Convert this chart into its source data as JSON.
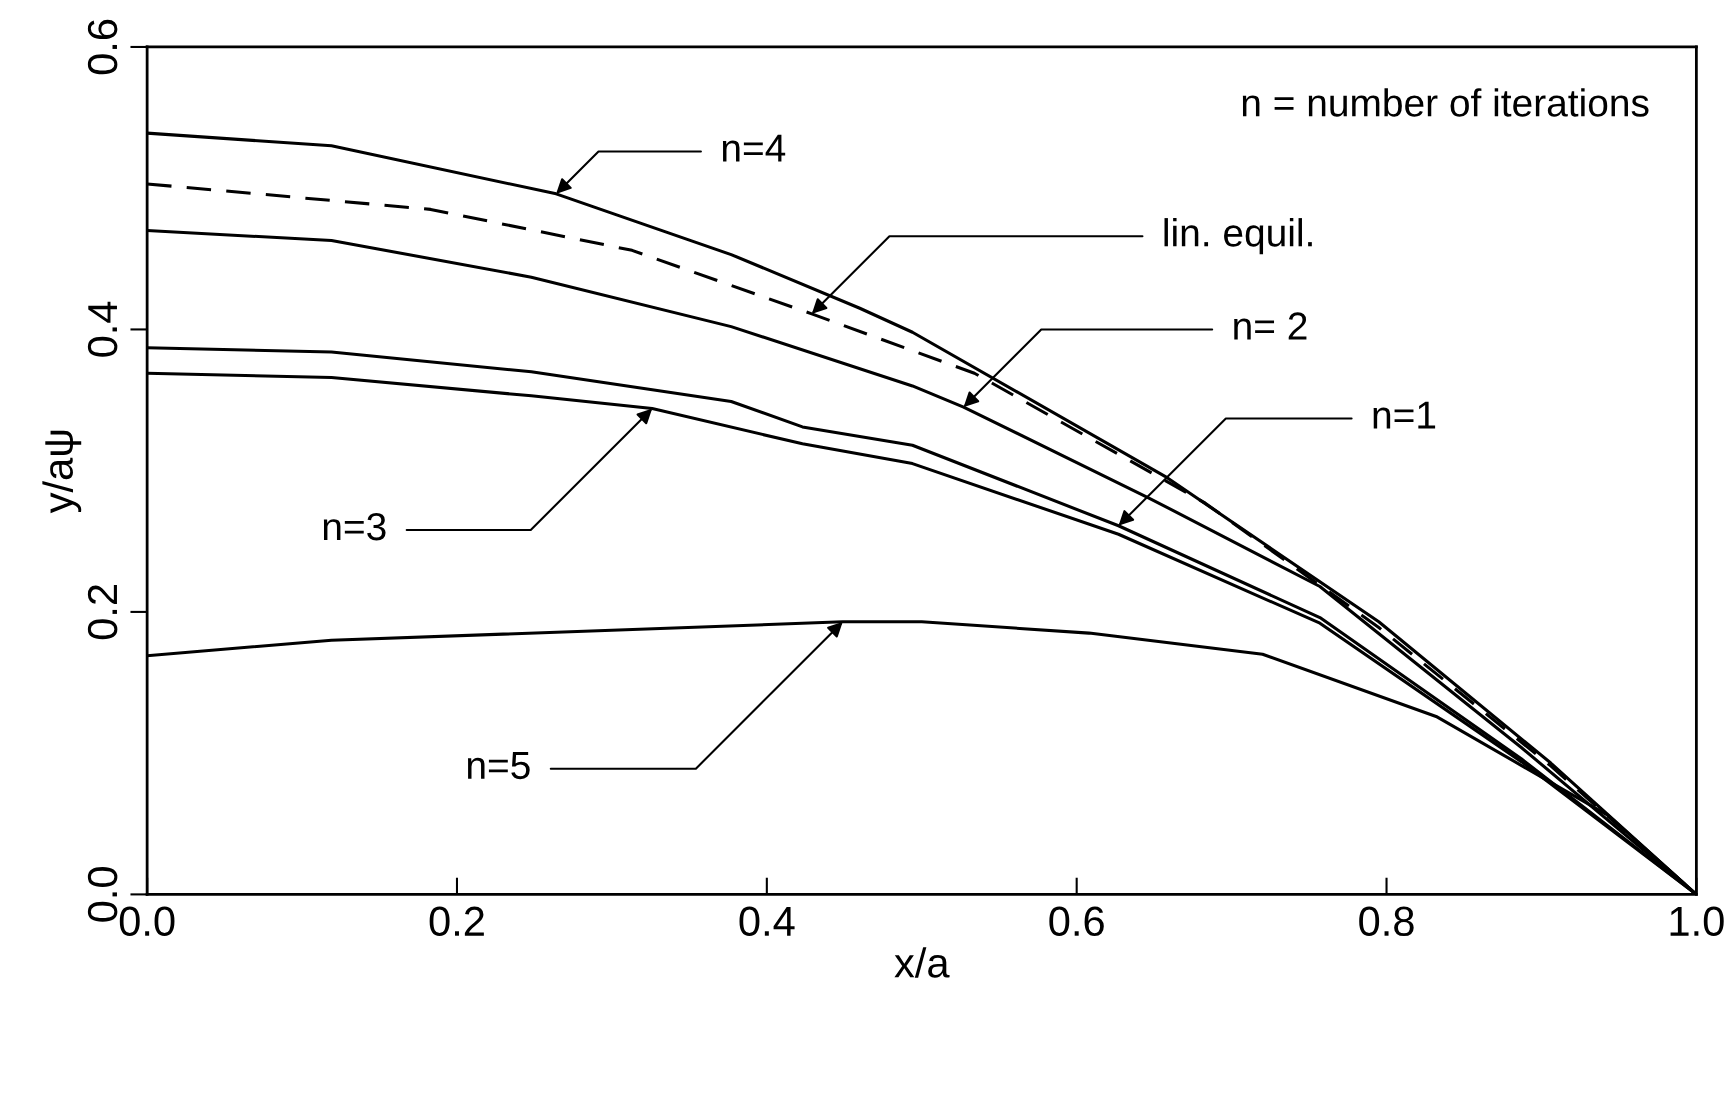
{
  "chart_data": {
    "type": "line",
    "xlabel": "x/a",
    "ylabel": "y/aψ",
    "xlim": [
      0.0,
      1.0
    ],
    "ylim": [
      0.0,
      0.6
    ],
    "xticks": [
      {
        "value": 0.0,
        "label": "0.0"
      },
      0.2,
      0.4,
      0.6,
      0.8,
      {
        "value": 1.0,
        "label": "1.0"
      }
    ],
    "yticks": [
      {
        "value": 0.0,
        "label": "0.0"
      },
      0.2,
      0.4,
      0.6
    ],
    "grid": false,
    "legend": false,
    "marker": "none",
    "series": [
      {
        "color": "#000000",
        "line_style": "solid",
        "x": [
          0.0,
          0.119,
          0.264,
          0.377,
          0.46,
          0.494,
          0.657,
          0.795,
          0.906,
          1.0
        ],
        "values": [
          0.539,
          0.53,
          0.496,
          0.453,
          0.415,
          0.398,
          0.296,
          0.193,
          0.093,
          0.0
        ]
      },
      {
        "color": "#000000",
        "line_style": "dashed",
        "x": [
          0.0,
          0.183,
          0.313,
          0.429,
          0.534,
          0.683,
          0.795,
          0.906,
          1.0
        ],
        "values": [
          0.503,
          0.485,
          0.456,
          0.411,
          0.369,
          0.277,
          0.189,
          0.091,
          0.0
        ]
      },
      {
        "color": "#000000",
        "line_style": "solid",
        "x": [
          0.0,
          0.119,
          0.248,
          0.377,
          0.494,
          0.527,
          0.646,
          0.757,
          0.887,
          1.0
        ],
        "values": [
          0.47,
          0.463,
          0.437,
          0.402,
          0.36,
          0.345,
          0.281,
          0.218,
          0.104,
          0.0
        ]
      },
      {
        "color": "#000000",
        "line_style": "solid",
        "x": [
          0.0,
          0.119,
          0.248,
          0.377,
          0.423,
          0.494,
          0.627,
          0.757,
          0.887,
          1.0
        ],
        "values": [
          0.387,
          0.384,
          0.37,
          0.349,
          0.331,
          0.318,
          0.261,
          0.196,
          0.096,
          0.0
        ]
      },
      {
        "color": "#000000",
        "line_style": "solid",
        "x": [
          0.0,
          0.119,
          0.248,
          0.326,
          0.423,
          0.494,
          0.627,
          0.757,
          0.887,
          1.0
        ],
        "values": [
          0.369,
          0.366,
          0.353,
          0.344,
          0.319,
          0.305,
          0.255,
          0.192,
          0.094,
          0.0
        ]
      },
      {
        "color": "#000000",
        "line_style": "solid",
        "x": [
          0.0,
          0.119,
          0.3,
          0.449,
          0.5,
          0.608,
          0.72,
          0.832,
          0.943,
          1.0
        ],
        "values": [
          0.169,
          0.18,
          0.187,
          0.193,
          0.193,
          0.185,
          0.17,
          0.126,
          0.056,
          0.0
        ]
      }
    ],
    "annotations": [
      {
        "text": "n=4",
        "x": 0.264,
        "y": 0.496
      },
      {
        "text": "lin. equil.",
        "x": 0.429,
        "y": 0.411
      },
      {
        "text": "n= 2",
        "x": 0.527,
        "y": 0.345
      },
      {
        "text": "n=1",
        "x": 0.627,
        "y": 0.261
      },
      {
        "text": "n=3",
        "x": 0.326,
        "y": 0.344
      },
      {
        "text": "n=5",
        "x": 0.449,
        "y": 0.193
      },
      "n = number of iterations"
    ]
  }
}
